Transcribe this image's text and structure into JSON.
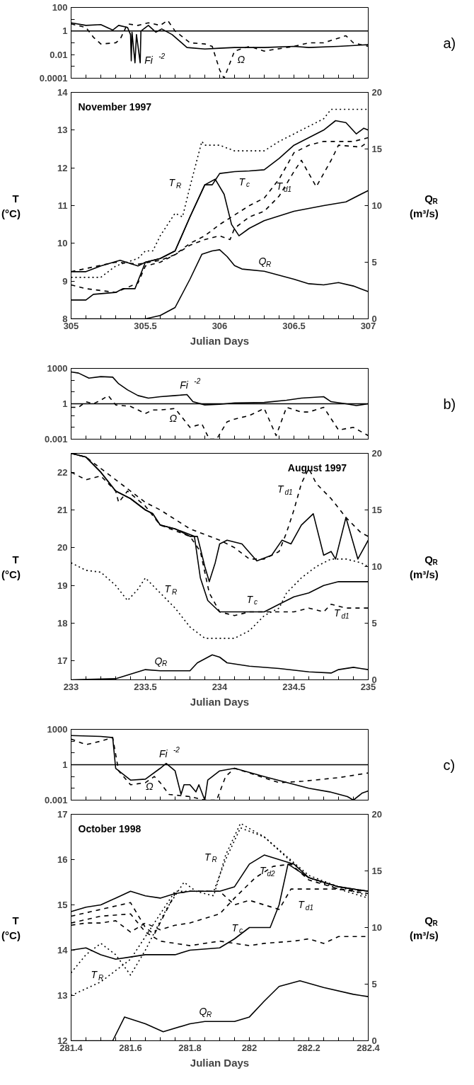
{
  "chart_data": [
    {
      "type": "line",
      "log": "y",
      "xlim": [
        305,
        307
      ],
      "ylim": [
        0.0001,
        100
      ],
      "yticks": [
        100,
        {
          "value": 10,
          "label": null
        },
        1,
        {
          "value": 0.1,
          "label": null
        },
        0.01,
        {
          "value": 0.001,
          "label": null
        },
        0.0001
      ],
      "xticks": [
        305,
        {
          "value": 305.1,
          "label": null
        },
        {
          "value": 305.2,
          "label": null
        },
        {
          "value": 305.3,
          "label": null
        },
        {
          "value": 305.4,
          "label": null
        },
        305.5,
        {
          "value": 305.6,
          "label": null
        },
        {
          "value": 305.7,
          "label": null
        },
        {
          "value": 305.8,
          "label": null
        },
        {
          "value": 305.9,
          "label": null
        },
        306,
        {
          "value": 306.1,
          "label": null
        },
        {
          "value": 306.2,
          "label": null
        },
        {
          "value": 306.3,
          "label": null
        },
        {
          "value": 306.4,
          "label": null
        },
        306.5,
        {
          "value": 306.6,
          "label": null
        },
        {
          "value": 306.7,
          "label": null
        },
        {
          "value": 306.8,
          "label": null
        },
        {
          "value": 306.9,
          "label": null
        },
        307
      ],
      "tick_labels": "y",
      "grid": false,
      "ref_lines": [
        {
          "axis": "y",
          "value": 1,
          "color": "#000000",
          "line_style": "solid"
        }
      ],
      "annotations": [
        "a)",
        {
          "text": "Fi$^{-2}$",
          "x": 305.465,
          "y": 0.002
        },
        {
          "text": "Ω",
          "x": 306.1,
          "y": 0.02
        }
      ],
      "series": [
        {
          "color": "#000000",
          "line_style": "solid",
          "x": [
            305,
            305.1,
            305.2,
            305.28,
            305.32,
            305.38,
            305.4,
            305.405,
            305.41,
            305.43,
            305.44,
            305.465,
            305.47,
            305.52,
            305.57,
            305.61,
            305.68,
            305.78,
            305.9,
            306,
            306.1,
            306.3,
            306.5,
            306.6,
            306.8,
            307
          ],
          "values": [
            5,
            3,
            3.5,
            1.2,
            3,
            2,
            0.5,
            0.003,
            0.8,
            0.002,
            0.5,
            0.002,
            1,
            3,
            0.8,
            1.5,
            0.5,
            0.04,
            0.03,
            0.035,
            0.04,
            0.04,
            0.05,
            0.04,
            0.05,
            0.07
          ]
        },
        {
          "color": "#000000",
          "line_style": "dashed",
          "x": [
            305,
            305.1,
            305.15,
            305.2,
            305.3,
            305.33,
            305.38,
            305.45,
            305.52,
            305.6,
            305.65,
            305.7,
            305.8,
            305.9,
            305.95,
            306,
            306.03,
            306.1,
            306.2,
            306.3,
            306.5,
            306.6,
            306.7,
            306.85,
            306.9,
            307
          ],
          "values": [
            4,
            2,
            0.3,
            0.08,
            0.1,
            0.2,
            4,
            3,
            5,
            3,
            8,
            1,
            0.1,
            0.08,
            0.05,
            0.0005,
            0.0001,
            0.02,
            0.05,
            0.02,
            0.05,
            0.1,
            0.1,
            0.4,
            0.1,
            0.05
          ]
        }
      ]
    },
    {
      "type": "line",
      "xlim": [
        305,
        307
      ],
      "ylim": [
        8,
        14
      ],
      "y2lim": [
        0,
        20
      ],
      "yticks": [
        8,
        9,
        10,
        11,
        12,
        13,
        14
      ],
      "y2ticks": [
        0,
        5,
        10,
        15,
        20
      ],
      "xticks": [
        305,
        {
          "value": 305.1,
          "label": null
        },
        {
          "value": 305.2,
          "label": null
        },
        {
          "value": 305.3,
          "label": null
        },
        {
          "value": 305.4,
          "label": null
        },
        305.5,
        {
          "value": 305.6,
          "label": null
        },
        {
          "value": 305.7,
          "label": null
        },
        {
          "value": 305.8,
          "label": null
        },
        {
          "value": 305.9,
          "label": null
        },
        306,
        {
          "value": 306.1,
          "label": null
        },
        {
          "value": 306.2,
          "label": null
        },
        {
          "value": 306.3,
          "label": null
        },
        {
          "value": 306.4,
          "label": null
        },
        306.5,
        {
          "value": 306.6,
          "label": null
        },
        {
          "value": 306.7,
          "label": null
        },
        {
          "value": 306.8,
          "label": null
        },
        {
          "value": 306.9,
          "label": null
        },
        307
      ],
      "xlabel": "Julian Days",
      "ylabel": "T\n(°C)",
      "y2label": "Q$_{R}$\n(m³/s)",
      "grid": false,
      "annotations": [
        "November 1997",
        {
          "text": "T$_{R}$",
          "x": 305.8,
          "y": 11.5
        },
        {
          "text": "T$_{c}$",
          "x": 306.1,
          "y": 11.9
        },
        {
          "text": "T$_{d1}$",
          "x": 306.4,
          "y": 11.25
        },
        {
          "text": "Q$_{R}$",
          "x": 306.3,
          "y": 9.26
        }
      ],
      "series": [
        {
          "color": "#000000",
          "line_style": "dotted",
          "x": [
            305,
            305.2,
            305.3,
            305.45,
            305.5,
            305.55,
            305.6,
            305.7,
            305.75,
            305.8,
            305.88,
            305.9,
            306,
            306.1,
            306.2,
            306.3,
            306.4,
            306.5,
            306.6,
            306.7,
            306.75,
            307
          ],
          "values": [
            9.1,
            9.1,
            9.4,
            9.6,
            9.8,
            9.8,
            10.2,
            10.8,
            10.7,
            11.5,
            12.7,
            12.6,
            12.6,
            12.45,
            12.45,
            12.45,
            12.7,
            12.9,
            13.1,
            13.3,
            13.55,
            13.55
          ]
        },
        {
          "color": "#000000",
          "line_style": "solid",
          "x": [
            305,
            305.1,
            305.2,
            305.33,
            305.45,
            305.5,
            305.6,
            305.7,
            305.8,
            305.9,
            305.95,
            306,
            306.1,
            306.2,
            306.3,
            306.4,
            306.5,
            306.6,
            306.7,
            306.78,
            306.85,
            306.92,
            306.97,
            307
          ],
          "values": [
            9.25,
            9.25,
            9.4,
            9.55,
            9.4,
            9.5,
            9.6,
            9.8,
            10.7,
            11.55,
            11.55,
            11.85,
            11.9,
            11.92,
            11.95,
            12.25,
            12.6,
            12.8,
            13,
            13.25,
            13.2,
            12.9,
            13.05,
            13
          ]
        },
        {
          "color": "#000000",
          "line_style": "solid",
          "x": [
            305,
            305.1,
            305.15,
            305.3,
            305.35,
            305.43,
            305.5,
            305.6,
            305.7,
            305.8,
            305.9,
            305.97,
            306.03,
            306.08,
            306.13,
            306.2,
            306.3,
            306.5,
            306.7,
            306.85,
            307
          ],
          "values": [
            8.5,
            8.5,
            8.65,
            8.7,
            8.8,
            8.8,
            9.5,
            9.6,
            9.8,
            10.7,
            11.55,
            11.7,
            11.3,
            10.5,
            10.2,
            10.4,
            10.6,
            10.85,
            11,
            11.1,
            11.4
          ]
        },
        {
          "color": "#000000",
          "line_style": "dashed",
          "x": [
            305,
            305.3,
            305.45,
            305.6,
            305.7,
            305.8,
            305.9,
            306,
            306.1,
            306.2,
            306.3,
            306.4,
            306.5,
            306.6,
            306.7,
            306.9,
            307
          ],
          "values": [
            9.25,
            9.5,
            9.45,
            9.55,
            9.7,
            10,
            10.2,
            10.5,
            10.75,
            11,
            11.2,
            11.7,
            12.4,
            12.6,
            12.7,
            12.7,
            12.8
          ]
        },
        {
          "color": "#000000",
          "line_style": "dashed",
          "x": [
            305,
            305.1,
            305.3,
            305.45,
            305.5,
            305.6,
            305.7,
            305.8,
            305.9,
            306,
            306.07,
            306.1,
            306.2,
            306.3,
            306.4,
            306.5,
            306.55,
            306.65,
            306.75,
            306.8,
            306.95,
            307
          ],
          "values": [
            8.9,
            8.8,
            8.7,
            8.95,
            9.4,
            9.5,
            9.7,
            9.95,
            10.1,
            10.2,
            10.1,
            10.4,
            10.7,
            10.85,
            11.25,
            11.9,
            12.2,
            11.5,
            12.2,
            12.6,
            12.55,
            12.7
          ]
        },
        {
          "color": "#000000",
          "line_style": "solid",
          "axis": "y2",
          "x": [
            305,
            305.5,
            305.6,
            305.7,
            305.8,
            305.88,
            305.95,
            306,
            306.05,
            306.1,
            306.15,
            306.3,
            306.5,
            306.6,
            306.7,
            306.8,
            306.9,
            307
          ],
          "values": [
            0,
            0,
            0.3,
            1,
            3.5,
            5.7,
            6,
            6.1,
            5.5,
            4.7,
            4.4,
            4.2,
            3.5,
            3.1,
            3,
            3.2,
            2.9,
            2.4
          ]
        }
      ]
    },
    {
      "type": "line",
      "log": "y",
      "xlim": [
        233,
        235
      ],
      "ylim": [
        0.001,
        1000
      ],
      "yticks": [
        1000,
        {
          "value": 100,
          "label": null
        },
        {
          "value": 10,
          "label": null
        },
        1,
        {
          "value": 0.1,
          "label": null
        },
        {
          "value": 0.01,
          "label": null
        },
        0.001
      ],
      "xticks": [
        233,
        {
          "value": 233.1,
          "label": null
        },
        {
          "value": 233.2,
          "label": null
        },
        {
          "value": 233.3,
          "label": null
        },
        {
          "value": 233.4,
          "label": null
        },
        233.5,
        {
          "value": 233.6,
          "label": null
        },
        {
          "value": 233.7,
          "label": null
        },
        {
          "value": 233.8,
          "label": null
        },
        {
          "value": 233.9,
          "label": null
        },
        234,
        {
          "value": 234.1,
          "label": null
        },
        {
          "value": 234.2,
          "label": null
        },
        {
          "value": 234.3,
          "label": null
        },
        {
          "value": 234.4,
          "label": null
        },
        234.5,
        {
          "value": 234.6,
          "label": null
        },
        {
          "value": 234.7,
          "label": null
        },
        {
          "value": 234.8,
          "label": null
        },
        {
          "value": 234.9,
          "label": null
        },
        235
      ],
      "tick_labels": "y",
      "grid": false,
      "ref_lines": [
        {
          "axis": "y",
          "value": 1,
          "color": "#000000",
          "line_style": "solid"
        }
      ],
      "annotations": [
        "b)",
        {
          "text": "Fi$^{-2}$",
          "x": 233.78,
          "y": 6
        },
        {
          "text": "Ω",
          "x": 233.7,
          "y": 0.4
        }
      ],
      "series": [
        {
          "color": "#000000",
          "line_style": "solid",
          "x": [
            233,
            233.05,
            233.12,
            233.2,
            233.28,
            233.32,
            233.38,
            233.45,
            233.52,
            233.6,
            233.7,
            233.78,
            233.82,
            233.9,
            234,
            234.1,
            234.3,
            234.45,
            234.55,
            234.7,
            234.75,
            234.85,
            234.92,
            235
          ],
          "values": [
            500,
            400,
            150,
            200,
            180,
            50,
            15,
            5,
            3,
            4,
            5,
            6,
            1.5,
            0.8,
            0.9,
            1.2,
            1.3,
            2,
            3,
            4,
            1.5,
            1,
            0.7,
            1
          ]
        },
        {
          "color": "#000000",
          "line_style": "dashed",
          "x": [
            233,
            233.05,
            233.1,
            233.15,
            233.2,
            233.25,
            233.3,
            233.4,
            233.5,
            233.55,
            233.6,
            233.7,
            233.8,
            233.88,
            233.93,
            233.98,
            234.05,
            234.1,
            234.2,
            234.3,
            234.38,
            234.45,
            234.55,
            234.6,
            234.7,
            234.8,
            234.9,
            235
          ],
          "values": [
            0.5,
            0.5,
            1.5,
            1,
            2,
            5,
            0.8,
            0.6,
            0.15,
            0.3,
            0.3,
            0.4,
            0.01,
            0.02,
            0.001,
            0.001,
            0.03,
            0.05,
            0.1,
            0.4,
            0.002,
            0.5,
            0.2,
            0.2,
            0.5,
            0.006,
            0.01,
            0.002
          ]
        }
      ]
    },
    {
      "type": "line",
      "xlim": [
        233,
        235
      ],
      "ylim": [
        16.5,
        22.5
      ],
      "y2lim": [
        0,
        20
      ],
      "yticks": [
        17,
        18,
        19,
        20,
        21,
        22
      ],
      "y2ticks": [
        0,
        5,
        10,
        15,
        20
      ],
      "xticks": [
        233,
        {
          "value": 233.1,
          "label": null
        },
        {
          "value": 233.2,
          "label": null
        },
        {
          "value": 233.3,
          "label": null
        },
        {
          "value": 233.4,
          "label": null
        },
        233.5,
        {
          "value": 233.6,
          "label": null
        },
        {
          "value": 233.7,
          "label": null
        },
        {
          "value": 233.8,
          "label": null
        },
        {
          "value": 233.9,
          "label": null
        },
        234,
        {
          "value": 234.1,
          "label": null
        },
        {
          "value": 234.2,
          "label": null
        },
        {
          "value": 234.3,
          "label": null
        },
        {
          "value": 234.4,
          "label": null
        },
        234.5,
        {
          "value": 234.6,
          "label": null
        },
        {
          "value": 234.7,
          "label": null
        },
        {
          "value": 234.8,
          "label": null
        },
        {
          "value": 234.9,
          "label": null
        },
        235
      ],
      "xlabel": "Julian Days",
      "ylabel": "T\n(°C)",
      "y2label": "Q$_{R}$\n(m³/s)",
      "grid": false,
      "annotations": [
        "August 1997",
        {
          "text": "T$_{d1}$",
          "x": 234.55,
          "y": 21.7
        },
        {
          "text": "T$_{c}$",
          "x": 234.2,
          "y": 18.3
        },
        {
          "text": "T$_{R}$",
          "x": 233.6,
          "y": 18.8
        },
        {
          "text": "T$_{d1}$",
          "x": 234.75,
          "y": 18.5
        },
        {
          "text": "Q$_{R}$",
          "x": 233.6,
          "y": 16.74
        }
      ],
      "series": [
        {
          "color": "#000000",
          "line_style": "solid",
          "x": [
            233,
            233.1,
            233.2,
            233.3,
            233.4,
            233.5,
            233.55,
            233.6,
            233.7,
            233.8,
            233.85,
            233.9,
            233.93,
            233.97,
            234,
            234.05,
            234.15,
            234.25,
            234.35,
            234.42,
            234.48,
            234.55,
            234.63,
            234.7,
            234.75,
            234.78,
            234.85,
            234.93,
            235
          ],
          "values": [
            22.5,
            22.4,
            22,
            21.5,
            21.3,
            21,
            20.9,
            20.6,
            20.5,
            20.3,
            20.3,
            19.5,
            19.1,
            19.6,
            20.1,
            20.2,
            20.1,
            19.65,
            19.8,
            20.2,
            20.1,
            20.6,
            20.9,
            19.8,
            19.9,
            19.7,
            20.8,
            19.7,
            20.2
          ]
        },
        {
          "color": "#000000",
          "line_style": "solid",
          "x": [
            233,
            233.1,
            233.2,
            233.3,
            233.4,
            233.5,
            233.55,
            233.6,
            233.7,
            233.83,
            233.87,
            233.92,
            234,
            234.3,
            234.4,
            234.5,
            234.6,
            234.7,
            234.8,
            235
          ],
          "values": [
            22.5,
            22.4,
            22,
            21.5,
            21.3,
            21,
            20.9,
            20.6,
            20.5,
            20.3,
            19.2,
            18.6,
            18.3,
            18.3,
            18.5,
            18.7,
            18.8,
            19,
            19.1,
            19.1
          ]
        },
        {
          "color": "#000000",
          "line_style": "dashed",
          "x": [
            233,
            233.1,
            233.3,
            233.5,
            233.6,
            233.8,
            234,
            234.1,
            234.2,
            234.3,
            234.4,
            234.45,
            234.5,
            234.55,
            234.6,
            234.65,
            234.75,
            234.85,
            234.95,
            235
          ],
          "values": [
            22.5,
            22.4,
            21.8,
            21.2,
            21,
            20.5,
            20.2,
            20,
            19.7,
            19.7,
            19.9,
            20.4,
            21,
            21.7,
            22.1,
            21.7,
            21.3,
            20.8,
            20.4,
            20.3
          ]
        },
        {
          "color": "#000000",
          "line_style": "dashed",
          "x": [
            233,
            233.1,
            233.2,
            233.3,
            233.32,
            233.38,
            233.5,
            233.6,
            233.8,
            233.87,
            233.93,
            234,
            234.1,
            234.2,
            234.35,
            234.5,
            234.6,
            234.7,
            234.75,
            234.85,
            235
          ],
          "values": [
            22,
            21.8,
            21.9,
            21.5,
            21.2,
            21.5,
            21.1,
            20.6,
            20.3,
            19.9,
            18.8,
            18.3,
            18.2,
            18.3,
            18.3,
            18.3,
            18.4,
            18.3,
            18.5,
            18.4,
            18.4
          ]
        },
        {
          "color": "#000000",
          "line_style": "dotted",
          "x": [
            233,
            233.1,
            233.2,
            233.3,
            233.38,
            233.45,
            233.5,
            233.6,
            233.7,
            233.8,
            233.9,
            234,
            234.1,
            234.2,
            234.3,
            234.4,
            234.45,
            234.55,
            234.65,
            234.75,
            234.85,
            234.95,
            235
          ],
          "values": [
            19.6,
            19.4,
            19.35,
            19,
            18.6,
            18.9,
            19.2,
            18.8,
            18.4,
            17.9,
            17.6,
            17.6,
            17.6,
            17.8,
            18.2,
            18.4,
            18.8,
            19.2,
            19.5,
            19.7,
            19.7,
            19.6,
            19.5
          ]
        },
        {
          "color": "#000000",
          "line_style": "solid",
          "axis": "y2",
          "x": [
            233,
            233.3,
            233.4,
            233.5,
            233.6,
            233.8,
            233.85,
            233.95,
            234,
            234.05,
            234.2,
            234.4,
            234.6,
            234.75,
            234.8,
            234.9,
            235
          ],
          "values": [
            0,
            0.1,
            0.5,
            0.9,
            0.8,
            0.8,
            1.5,
            2.2,
            2,
            1.5,
            1.2,
            1,
            0.7,
            0.6,
            0.9,
            1.1,
            0.9
          ]
        }
      ]
    },
    {
      "type": "line",
      "log": "y",
      "xlim": [
        281.4,
        282.4
      ],
      "ylim": [
        0.001,
        1000
      ],
      "yticks": [
        1000,
        {
          "value": 100,
          "label": null
        },
        {
          "value": 10,
          "label": null
        },
        1,
        {
          "value": 0.1,
          "label": null
        },
        {
          "value": 0.01,
          "label": null
        },
        0.001
      ],
      "xticks": [
        281.4,
        {
          "value": 281.45,
          "label": null
        },
        {
          "value": 281.5,
          "label": null
        },
        {
          "value": 281.55,
          "label": null
        },
        281.6,
        {
          "value": 281.65,
          "label": null
        },
        {
          "value": 281.7,
          "label": null
        },
        {
          "value": 281.75,
          "label": null
        },
        281.8,
        {
          "value": 281.85,
          "label": null
        },
        {
          "value": 281.9,
          "label": null
        },
        {
          "value": 281.95,
          "label": null
        },
        282,
        {
          "value": 282.05,
          "label": null
        },
        {
          "value": 282.1,
          "label": null
        },
        {
          "value": 282.15,
          "label": null
        },
        282.2,
        {
          "value": 282.25,
          "label": null
        },
        {
          "value": 282.3,
          "label": null
        },
        {
          "value": 282.35,
          "label": null
        },
        282.4
      ],
      "tick_labels": "y",
      "grid": false,
      "ref_lines": [
        {
          "axis": "y",
          "value": 1,
          "color": "#000000",
          "line_style": "solid"
        }
      ],
      "annotations": [
        "c)",
        {
          "text": "Fi$^{-2}$",
          "x": 281.72,
          "y": 1.3
        },
        {
          "text": "Ω",
          "x": 281.68,
          "y": 0.1
        }
      ],
      "series": [
        {
          "color": "#000000",
          "line_style": "solid",
          "x": [
            281.4,
            281.5,
            281.54,
            281.55,
            281.6,
            281.65,
            281.7,
            281.72,
            281.75,
            281.77,
            281.78,
            281.8,
            281.82,
            281.83,
            281.85,
            281.86,
            281.9,
            281.95,
            282.05,
            282.2,
            282.27,
            282.33,
            282.35,
            282.38,
            282.4
          ],
          "values": [
            300,
            250,
            200,
            0.5,
            0.05,
            0.06,
            0.5,
            1.3,
            0.3,
            0.003,
            0.02,
            0.02,
            0.005,
            0.02,
            0.001,
            0.05,
            0.3,
            0.5,
            0.1,
            0.01,
            0.005,
            0.002,
            0.001,
            0.004,
            0.006
          ]
        },
        {
          "color": "#000000",
          "line_style": "dashed",
          "x": [
            281.4,
            281.45,
            281.5,
            281.54,
            281.56,
            281.6,
            281.65,
            281.68,
            281.7,
            281.73,
            281.8,
            281.85,
            281.89,
            281.92,
            281.95,
            282,
            282.1,
            282.18,
            282.3,
            282.4
          ],
          "values": [
            150,
            50,
            100,
            200,
            0.3,
            0.02,
            0.03,
            0.1,
            0.03,
            0.003,
            0.002,
            0.001,
            0.001,
            0.1,
            0.5,
            0.2,
            0.03,
            0.04,
            0.08,
            0.2
          ]
        }
      ]
    },
    {
      "type": "line",
      "xlim": [
        281.4,
        282.4
      ],
      "ylim": [
        12,
        17
      ],
      "y2lim": [
        0,
        20
      ],
      "yticks": [
        12,
        13,
        14,
        15,
        16,
        17
      ],
      "y2ticks": [
        0,
        5,
        10,
        15,
        20
      ],
      "xticks": [
        281.4,
        {
          "value": 281.45,
          "label": null
        },
        {
          "value": 281.5,
          "label": null
        },
        {
          "value": 281.55,
          "label": null
        },
        281.6,
        {
          "value": 281.65,
          "label": null
        },
        {
          "value": 281.7,
          "label": null
        },
        {
          "value": 281.75,
          "label": null
        },
        281.8,
        {
          "value": 281.85,
          "label": null
        },
        {
          "value": 281.9,
          "label": null
        },
        {
          "value": 281.95,
          "label": null
        },
        282,
        {
          "value": 282.05,
          "label": null
        },
        {
          "value": 282.1,
          "label": null
        },
        {
          "value": 282.15,
          "label": null
        },
        282.2,
        {
          "value": 282.25,
          "label": null
        },
        {
          "value": 282.3,
          "label": null
        },
        {
          "value": 282.35,
          "label": null
        },
        282.4
      ],
      "xlabel": "Julian Days",
      "ylabel": "T\n(°C)",
      "y2label": "Q$_{R}$\n(m³/s)",
      "grid": false,
      "annotations": [
        "October 1998",
        {
          "text": "T$_{R}$",
          "x": 281.92,
          "y": 16
        },
        {
          "text": "T$_{d2}$",
          "x": 282.02,
          "y": 15.6
        },
        {
          "text": "T$_{c}$",
          "x": 281.95,
          "y": 14.25
        },
        {
          "text": "T$_{d1}$",
          "x": 282.14,
          "y": 15.35
        },
        {
          "text": "T$_{R}$",
          "x": 281.5,
          "y": 13.3
        },
        {
          "text": "Q$_{R}$",
          "x": 281.85,
          "y": 12.425
        }
      ],
      "series": [
        {
          "color": "#000000",
          "line_style": "solid",
          "x": [
            281.4,
            281.45,
            281.5,
            281.55,
            281.6,
            281.65,
            281.7,
            281.75,
            281.8,
            281.9,
            281.95,
            282,
            282.05,
            282.1,
            282.15,
            282.2,
            282.3,
            282.4
          ],
          "values": [
            14.85,
            14.95,
            15,
            15.15,
            15.3,
            15.2,
            15.15,
            15.25,
            15.3,
            15.3,
            15.4,
            15.9,
            16.1,
            16,
            15.9,
            15.6,
            15.4,
            15.3
          ]
        },
        {
          "color": "#000000",
          "line_style": "solid",
          "x": [
            281.4,
            281.45,
            281.5,
            281.55,
            281.6,
            281.65,
            281.75,
            281.8,
            281.9,
            281.95,
            282,
            282.07,
            282.1,
            282.13,
            282.2,
            282.3,
            282.4
          ],
          "values": [
            14,
            14.05,
            13.9,
            13.8,
            13.85,
            13.9,
            13.9,
            14,
            14.05,
            14.25,
            14.5,
            14.5,
            15,
            15.9,
            15.6,
            15.4,
            15.3
          ]
        },
        {
          "color": "#000000",
          "line_style": "dashed",
          "x": [
            281.4,
            281.5,
            281.6,
            281.65,
            281.68,
            281.75,
            281.8,
            281.9,
            281.95,
            282,
            282.1,
            282.14,
            282.2,
            282.3,
            282.4
          ],
          "values": [
            14.75,
            14.9,
            15.05,
            14.5,
            14.35,
            15.25,
            15.3,
            15.3,
            15,
            15.1,
            14.9,
            15.35,
            15.35,
            15.35,
            15.25
          ]
        },
        {
          "color": "#000000",
          "line_style": "dashed",
          "x": [
            281.4,
            281.5,
            281.6,
            281.65,
            281.7,
            281.8,
            281.9,
            282,
            282.05,
            282.15,
            282.2,
            282.25,
            282.3,
            282.4
          ],
          "values": [
            14.6,
            14.75,
            14.8,
            14.4,
            14.2,
            14.1,
            14.2,
            14.1,
            14.15,
            14.2,
            14.25,
            14.15,
            14.3,
            14.3
          ]
        },
        {
          "color": "#000000",
          "line_style": "dashed",
          "x": [
            281.4,
            281.45,
            281.5,
            281.55,
            281.6,
            281.65,
            281.7,
            281.75,
            281.8,
            281.9,
            281.95,
            282.02,
            282.08,
            282.14,
            282.2,
            282.3,
            282.4
          ],
          "values": [
            14.55,
            14.6,
            14.6,
            14.65,
            14.4,
            14.6,
            14.45,
            14.55,
            14.6,
            14.8,
            15.15,
            15.6,
            15.85,
            15.9,
            15.55,
            15.35,
            15.3
          ]
        },
        {
          "color": "#000000",
          "line_style": "dotted",
          "x": [
            281.4,
            281.5,
            281.6,
            281.65,
            281.7,
            281.75,
            281.8,
            281.88,
            281.92,
            281.97,
            282.05,
            282.1,
            282.2,
            282.3,
            282.4
          ],
          "values": [
            13,
            13.3,
            13.8,
            14.3,
            14.8,
            15.3,
            15.3,
            15.3,
            16,
            16.7,
            16.5,
            16.2,
            15.6,
            15.35,
            15.15
          ]
        },
        {
          "color": "#000000",
          "line_style": "dotted",
          "x": [
            281.4,
            281.45,
            281.5,
            281.55,
            281.6,
            281.65,
            281.72,
            281.78,
            281.82,
            281.88,
            281.92,
            281.97,
            282.05,
            282.12,
            282.2,
            282.3,
            282.4
          ],
          "values": [
            13.5,
            13.9,
            14.15,
            13.9,
            13.45,
            14,
            14.9,
            15.5,
            15.3,
            15.2,
            16.1,
            16.8,
            16.5,
            16.1,
            15.65,
            15.4,
            15.2
          ]
        },
        {
          "color": "#000000",
          "line_style": "solid",
          "axis": "y2",
          "x": [
            281.4,
            281.54,
            281.58,
            281.65,
            281.71,
            281.8,
            281.85,
            281.95,
            282,
            282.05,
            282.1,
            282.17,
            282.25,
            282.35,
            282.4
          ],
          "values": [
            0,
            0,
            2.1,
            1.5,
            0.8,
            1.5,
            1.7,
            1.7,
            2.1,
            3.5,
            4.8,
            5.3,
            4.7,
            4.1,
            3.9
          ]
        }
      ]
    }
  ]
}
